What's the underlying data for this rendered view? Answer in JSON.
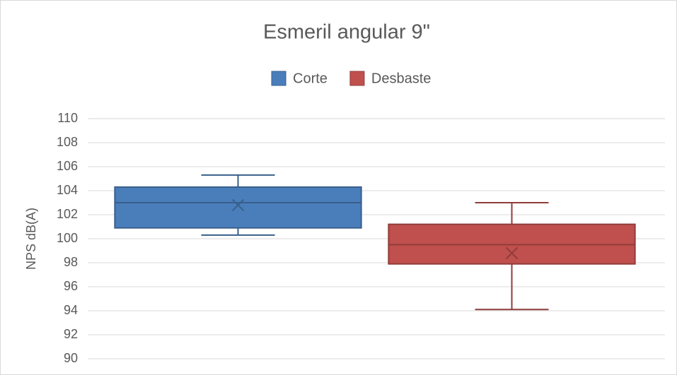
{
  "chart_data": {
    "type": "box",
    "title": "Esmeril angular 9\"",
    "y_label": "NPS dB(A)",
    "series": [
      {
        "name": "Corte",
        "color": "#4a7ebb",
        "min": 100.3,
        "q1": 100.9,
        "median": 103.0,
        "q3": 104.3,
        "max": 105.3,
        "mean": 102.8
      },
      {
        "name": "Desbaste",
        "color": "#c0504d",
        "min": 94.1,
        "q1": 97.9,
        "median": 99.5,
        "q3": 101.2,
        "max": 103.0,
        "mean": 98.8
      }
    ],
    "ylim": [
      90,
      110
    ],
    "yticks": [
      90,
      92,
      94,
      96,
      98,
      100,
      102,
      104,
      106,
      108,
      110
    ],
    "grid": true,
    "legend": "top"
  }
}
